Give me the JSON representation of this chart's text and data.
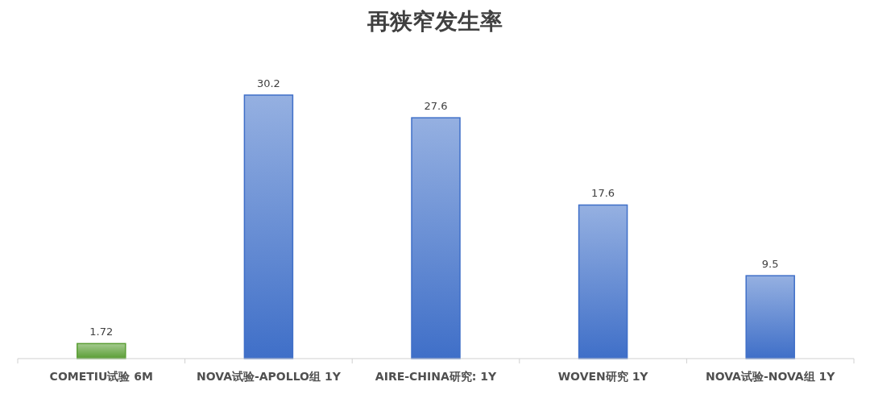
{
  "chart_data": {
    "type": "bar",
    "title": "再狭窄发生率",
    "categories": [
      "COMETIU试验 6M",
      "NOVA试验-APOLLO组 1Y",
      "AIRE-CHINA研究: 1Y",
      "WOVEN研究 1Y",
      "NOVA试验-NOVA组 1Y"
    ],
    "values": [
      1.72,
      30.2,
      27.6,
      17.6,
      9.5
    ],
    "colors": [
      "#5a9e34",
      "#3f6fc8",
      "#3f6fc8",
      "#3f6fc8",
      "#3f6fc8"
    ],
    "data_labels": true
  }
}
